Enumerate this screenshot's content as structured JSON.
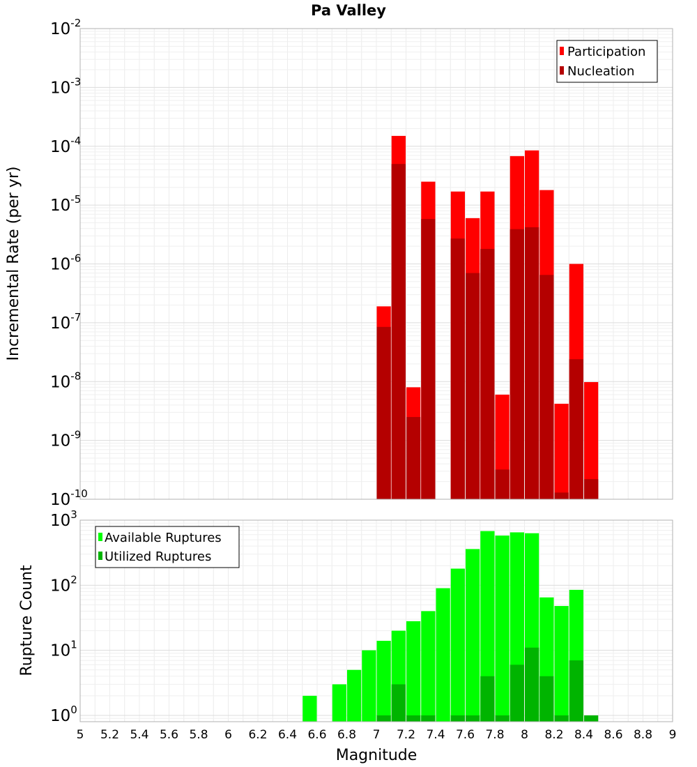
{
  "chart_data": [
    {
      "type": "bar",
      "title": "Pa Valley",
      "xlabel": "",
      "ylabel": "Incremental Rate (per yr)",
      "xlim": [
        5,
        9
      ],
      "ylim": [
        1e-10,
        0.01
      ],
      "y_scale": "log",
      "y_tick_labels": [
        {
          "base": "10",
          "exp": "-10"
        },
        {
          "base": "10",
          "exp": "-9"
        },
        {
          "base": "10",
          "exp": "-8"
        },
        {
          "base": "10",
          "exp": "-7"
        },
        {
          "base": "10",
          "exp": "-6"
        },
        {
          "base": "10",
          "exp": "-5"
        },
        {
          "base": "10",
          "exp": "-4"
        },
        {
          "base": "10",
          "exp": "-3"
        },
        {
          "base": "10",
          "exp": "-2"
        }
      ],
      "grid": true,
      "legend": "top-right",
      "bar_width": 0.1,
      "x": [
        7.05,
        7.15,
        7.25,
        7.35,
        7.45,
        7.55,
        7.65,
        7.75,
        7.85,
        7.95,
        8.05,
        8.15,
        8.25,
        8.35,
        8.45
      ],
      "series": [
        {
          "name": "Participation",
          "color": "#ff0000",
          "values": [
            1.9e-07,
            0.00015,
            8e-09,
            2.5e-05,
            null,
            1.7e-05,
            6e-06,
            1.7e-05,
            6e-09,
            6.8e-05,
            8.5e-05,
            1.8e-05,
            4.2e-09,
            1e-06,
            9.8e-09
          ]
        },
        {
          "name": "Nucleation",
          "color": "#b40000",
          "values": [
            8.5e-08,
            5e-05,
            2.5e-09,
            5.8e-06,
            null,
            2.7e-06,
            7e-07,
            1.8e-06,
            3.2e-10,
            3.9e-06,
            4.2e-06,
            6.5e-07,
            1.3e-10,
            2.4e-08,
            2.2e-10
          ]
        }
      ]
    },
    {
      "type": "bar",
      "title": "",
      "xlabel": "Magnitude",
      "ylabel": "Rupture Count",
      "xlim": [
        5,
        9
      ],
      "ylim": [
        0.8,
        1000
      ],
      "y_scale": "log",
      "y_tick_labels": [
        {
          "base": "10",
          "exp": "0"
        },
        {
          "base": "10",
          "exp": "1"
        },
        {
          "base": "10",
          "exp": "2"
        },
        {
          "base": "10",
          "exp": "3"
        }
      ],
      "x_tick_labels": [
        "5",
        "5.2",
        "5.4",
        "5.6",
        "5.8",
        "6",
        "6.2",
        "6.4",
        "6.6",
        "6.8",
        "7",
        "7.2",
        "7.4",
        "7.6",
        "7.8",
        "8",
        "8.2",
        "8.4",
        "8.6",
        "8.8",
        "9"
      ],
      "grid": true,
      "legend": "top-left",
      "bar_width": 0.1,
      "x": [
        6.55,
        6.65,
        6.75,
        6.85,
        6.95,
        7.05,
        7.15,
        7.25,
        7.35,
        7.45,
        7.55,
        7.65,
        7.75,
        7.85,
        7.95,
        8.05,
        8.15,
        8.25,
        8.35,
        8.45
      ],
      "series": [
        {
          "name": "Available Ruptures",
          "color": "#00ff00",
          "values": [
            2,
            null,
            3,
            5,
            10,
            14,
            20,
            28,
            40,
            90,
            180,
            360,
            680,
            580,
            650,
            630,
            65,
            48,
            85,
            null
          ]
        },
        {
          "name": "Utilized Ruptures",
          "color": "#00b400",
          "values": [
            null,
            null,
            null,
            null,
            null,
            1,
            3,
            1,
            1,
            null,
            1,
            1,
            4,
            1,
            6,
            11,
            4,
            1,
            7,
            1
          ]
        }
      ]
    }
  ]
}
